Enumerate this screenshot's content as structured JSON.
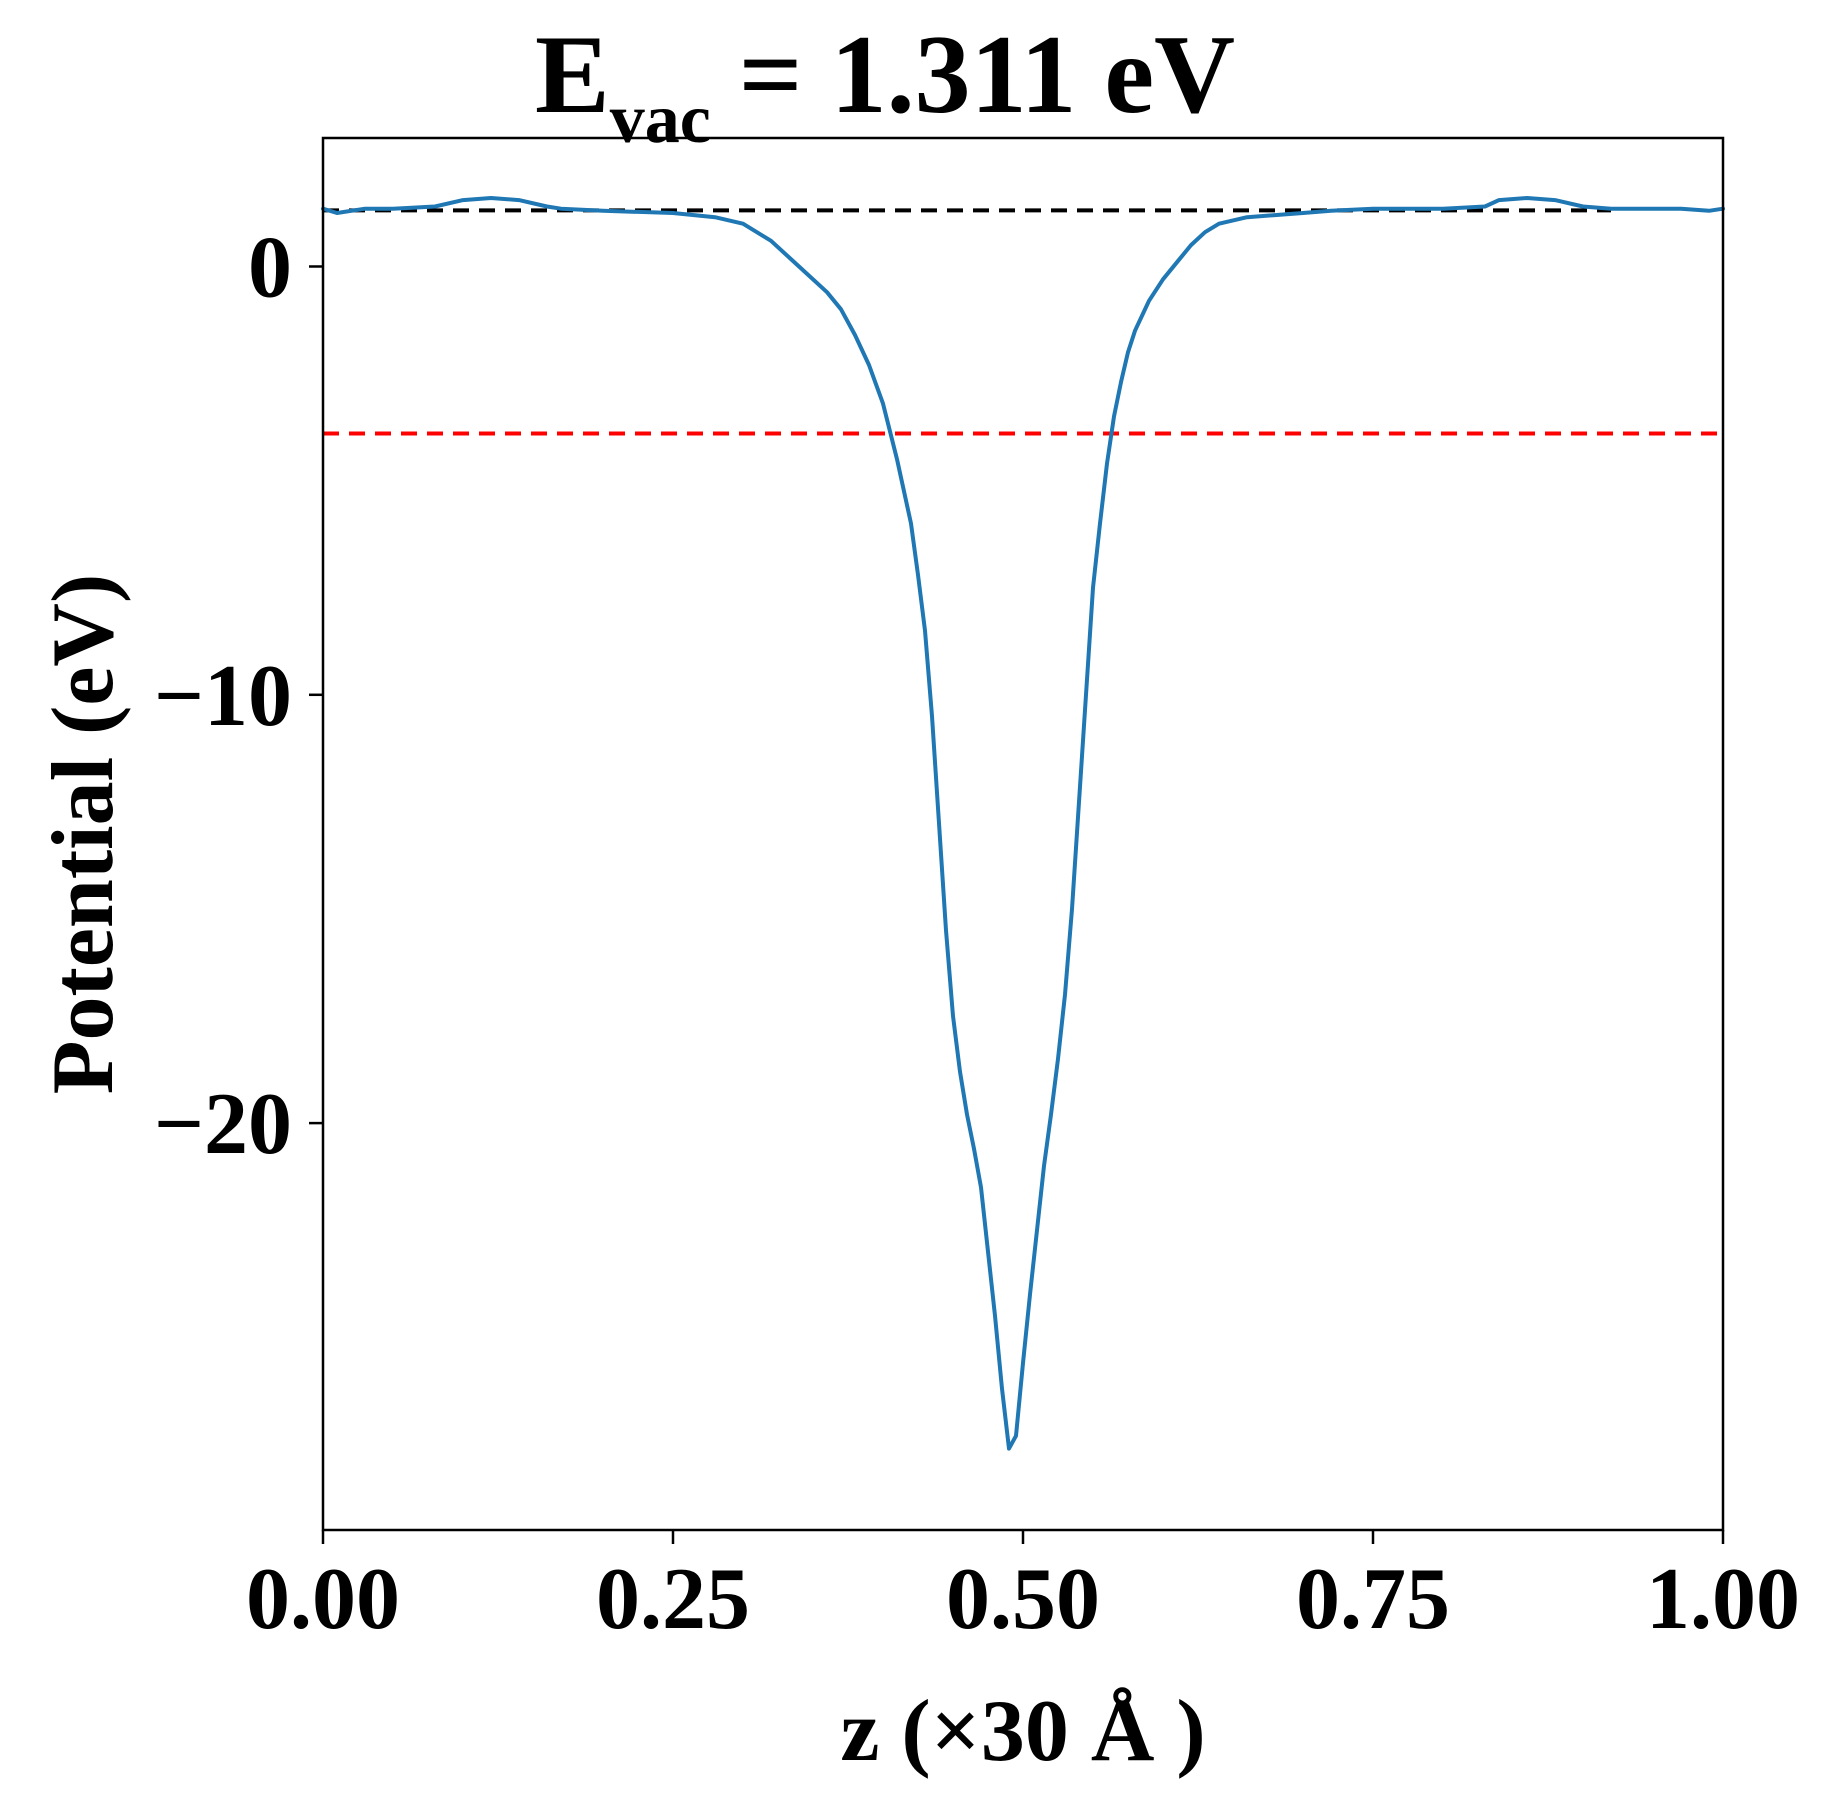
{
  "chart_data": {
    "type": "line",
    "title": {
      "main": "E",
      "subscript": "vac",
      "rest": " = 1.311 eV"
    },
    "xlabel": "z (×30 Å )",
    "ylabel": "Potential (eV)",
    "xlim": [
      0.0,
      1.0
    ],
    "ylim": [
      -29.5,
      3.0
    ],
    "x_ticks": [
      {
        "value": 0.0,
        "label": "0.00"
      },
      {
        "value": 0.25,
        "label": "0.25"
      },
      {
        "value": 0.5,
        "label": "0.50"
      },
      {
        "value": 0.75,
        "label": "0.75"
      },
      {
        "value": 1.0,
        "label": "1.00"
      }
    ],
    "y_ticks": [
      {
        "value": 0,
        "label": "0"
      },
      {
        "value": -10,
        "label": "−10"
      },
      {
        "value": -20,
        "label": "−20"
      }
    ],
    "grid": false,
    "legend": "none",
    "series": [
      {
        "color": "#1f77b4",
        "x": [
          0.0,
          0.01,
          0.03,
          0.05,
          0.08,
          0.1,
          0.12,
          0.14,
          0.16,
          0.17,
          0.2,
          0.25,
          0.28,
          0.3,
          0.32,
          0.34,
          0.36,
          0.37,
          0.38,
          0.39,
          0.4,
          0.41,
          0.42,
          0.425,
          0.43,
          0.435,
          0.44,
          0.445,
          0.45,
          0.455,
          0.46,
          0.465,
          0.47,
          0.475,
          0.48,
          0.485,
          0.49,
          0.495,
          0.5,
          0.505,
          0.51,
          0.515,
          0.52,
          0.525,
          0.53,
          0.535,
          0.54,
          0.545,
          0.55,
          0.555,
          0.56,
          0.565,
          0.57,
          0.575,
          0.58,
          0.59,
          0.6,
          0.61,
          0.62,
          0.63,
          0.64,
          0.66,
          0.68,
          0.7,
          0.72,
          0.75,
          0.8,
          0.83,
          0.84,
          0.86,
          0.88,
          0.9,
          0.92,
          0.95,
          0.97,
          0.99,
          1.0
        ],
        "y": [
          1.35,
          1.25,
          1.35,
          1.35,
          1.4,
          1.55,
          1.6,
          1.55,
          1.4,
          1.35,
          1.3,
          1.25,
          1.15,
          1.0,
          0.6,
          0.0,
          -0.6,
          -1.0,
          -1.6,
          -2.3,
          -3.2,
          -4.5,
          -6.0,
          -7.2,
          -8.5,
          -10.5,
          -13.0,
          -15.5,
          -17.5,
          -18.8,
          -19.8,
          -20.6,
          -21.5,
          -23.0,
          -24.5,
          -26.2,
          -27.6,
          -27.3,
          -25.6,
          -24.0,
          -22.5,
          -21.0,
          -19.8,
          -18.5,
          -17.0,
          -15.0,
          -12.5,
          -10.0,
          -7.5,
          -6.0,
          -4.6,
          -3.5,
          -2.7,
          -2.0,
          -1.5,
          -0.8,
          -0.3,
          0.1,
          0.5,
          0.8,
          1.0,
          1.15,
          1.2,
          1.25,
          1.3,
          1.35,
          1.35,
          1.4,
          1.55,
          1.6,
          1.55,
          1.4,
          1.35,
          1.35,
          1.35,
          1.3,
          1.35
        ]
      }
    ],
    "reference_lines": [
      {
        "y": 1.311,
        "color": "#000000",
        "style": "dashed",
        "xrange": [
          0.0,
          0.92
        ]
      },
      {
        "y": -3.9,
        "color": "#ff0000",
        "style": "dashed",
        "xrange": [
          0.0,
          1.0
        ]
      }
    ]
  }
}
